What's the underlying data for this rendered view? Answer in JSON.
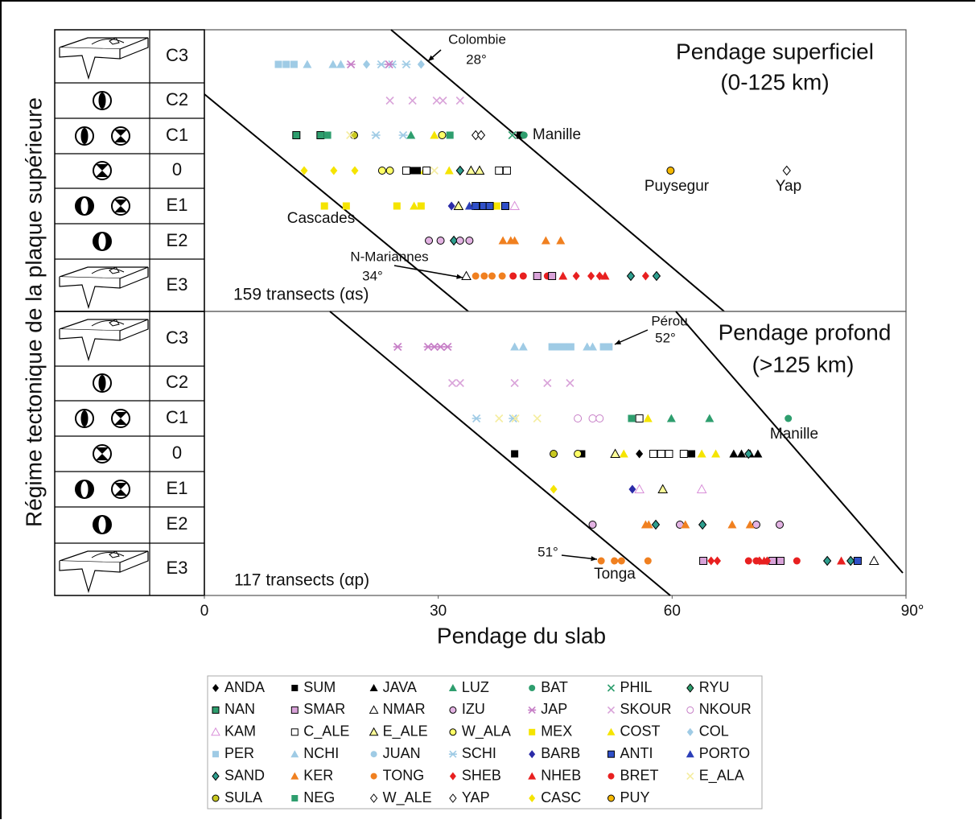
{
  "chart_data": [
    {
      "type": "scatter",
      "title": "Pendage superficiel",
      "subtitle": "(0-125 km)",
      "ylabel": "Régime tectonique de la plaque supérieure",
      "categories": [
        "C3",
        "C2",
        "C1",
        "0",
        "E1",
        "E2",
        "E3"
      ],
      "xlim": [
        0,
        90
      ],
      "annotations": [
        "Colombie",
        "28°",
        "Manille",
        "Puysegur",
        "Yap",
        "Cascades",
        "N-Mariannes",
        "34°",
        "159 transects (αs)"
      ],
      "series": [
        {
          "name": "PER",
          "x": [
            9.5,
            10.5,
            11.5
          ],
          "y": [
            "C3",
            "C3",
            "C3"
          ]
        },
        {
          "name": "NCHI",
          "x": [
            13.2,
            16.5,
            17.5
          ],
          "y": [
            "C3",
            "C3",
            "C3"
          ]
        },
        {
          "name": "COL",
          "x": [
            20.8,
            27.8
          ],
          "y": [
            "C3",
            "C3"
          ]
        },
        {
          "name": "SCHI",
          "x": [
            22.7,
            24.1,
            25.9,
            22,
            25.5
          ],
          "y": [
            "C3",
            "C3",
            "C3",
            "C1",
            "C1"
          ]
        },
        {
          "name": "JAP",
          "x": [
            18.8,
            23.7
          ],
          "y": [
            "C3",
            "C3"
          ]
        },
        {
          "name": "SKOUR",
          "x": [
            23.8,
            26.7,
            29.8,
            30.6,
            32.8
          ],
          "y": [
            "C2",
            "C2",
            "C2",
            "C2",
            "C2"
          ]
        },
        {
          "name": "NAN",
          "x": [
            11.8,
            14.9
          ],
          "y": [
            "C1",
            "C1"
          ]
        },
        {
          "name": "NEG",
          "x": [
            15.8,
            31.5
          ],
          "y": [
            "C1",
            "C1"
          ]
        },
        {
          "name": "SULA",
          "x": [
            19.2
          ],
          "y": [
            "C1"
          ]
        },
        {
          "name": "E_ALA",
          "x": [
            18.7,
            29.5
          ],
          "y": [
            "C1",
            "0"
          ]
        },
        {
          "name": "PHIL",
          "x": [
            39.5
          ],
          "y": [
            "C1"
          ]
        },
        {
          "name": "LUZ",
          "x": [
            26.5
          ],
          "y": [
            "C1"
          ]
        },
        {
          "name": "COST",
          "x": [
            29.5,
            28.2,
            31.4,
            26.9
          ],
          "y": [
            "C1",
            "0",
            "0",
            "E1"
          ]
        },
        {
          "name": "W_ALA",
          "x": [
            30.5,
            22.8,
            23.8
          ],
          "y": [
            "C1",
            "0",
            "0"
          ]
        },
        {
          "name": "W_ALE",
          "x": [
            34.8,
            35.5
          ],
          "y": [
            "C1",
            "C1"
          ]
        },
        {
          "name": "SUM",
          "x": [
            40.5,
            26.7,
            27.3
          ],
          "y": [
            "C1",
            "0",
            "0"
          ]
        },
        {
          "name": "BAT",
          "x": [
            41
          ],
          "y": [
            "C1"
          ]
        },
        {
          "name": "CASC",
          "x": [
            12.8,
            16.6,
            19.3
          ],
          "y": [
            "0",
            "0",
            "0"
          ]
        },
        {
          "name": "C_ALE",
          "x": [
            25.9,
            28.5,
            37.8,
            38.8
          ],
          "y": [
            "0",
            "0",
            "0",
            "0"
          ]
        },
        {
          "name": "SAND",
          "x": [
            32.8,
            32,
            54.7,
            58
          ],
          "y": [
            "0",
            "E2",
            "E3",
            "E3"
          ]
        },
        {
          "name": "E_ALE",
          "x": [
            34.2,
            35.3,
            32.6
          ],
          "y": [
            "0",
            "0",
            "E1"
          ]
        },
        {
          "name": "PUY",
          "x": [
            59.8
          ],
          "y": [
            "0"
          ]
        },
        {
          "name": "YAP",
          "x": [
            74.7
          ],
          "y": [
            "0"
          ]
        },
        {
          "name": "MEX",
          "x": [
            15.4,
            18.2,
            24.7,
            27.8,
            37.5
          ],
          "y": [
            "E1",
            "E1",
            "E1",
            "E1",
            "E1"
          ]
        },
        {
          "name": "BARB",
          "x": [
            31.7
          ],
          "y": [
            "E1"
          ]
        },
        {
          "name": "ANTI",
          "x": [
            34.8,
            35.8,
            36.6,
            38.6
          ],
          "y": [
            "E1",
            "E1",
            "E1",
            "E1"
          ]
        },
        {
          "name": "PORTO",
          "x": [
            34
          ],
          "y": [
            "E1"
          ]
        },
        {
          "name": "KAM",
          "x": [
            39.8
          ],
          "y": [
            "E1"
          ]
        },
        {
          "name": "IZU",
          "x": [
            28.8,
            30.3,
            32.8,
            34
          ],
          "y": [
            "E2",
            "E2",
            "E2",
            "E2"
          ]
        },
        {
          "name": "KER",
          "x": [
            38.3,
            39.3,
            39.8,
            43.8,
            45.7
          ],
          "y": [
            "E2",
            "E2",
            "E2",
            "E2",
            "E2"
          ]
        },
        {
          "name": "NMAR",
          "x": [
            33.6
          ],
          "y": [
            "E3"
          ]
        },
        {
          "name": "TONG",
          "x": [
            34.8,
            35.9,
            36.9,
            38.2
          ],
          "y": [
            "E3",
            "E3",
            "E3",
            "E3"
          ]
        },
        {
          "name": "BRET",
          "x": [
            39.6,
            40.9,
            44
          ],
          "y": [
            "E3",
            "E3",
            "E3"
          ]
        },
        {
          "name": "SMAR",
          "x": [
            42.7,
            44.6
          ],
          "y": [
            "E3",
            "E3"
          ]
        },
        {
          "name": "NHEB",
          "x": [
            46,
            51.4
          ],
          "y": [
            "E3",
            "E3"
          ]
        },
        {
          "name": "SHEB",
          "x": [
            47.7,
            49.6,
            50.7,
            56.6
          ],
          "y": [
            "E3",
            "E3",
            "E3",
            "E3"
          ]
        }
      ]
    },
    {
      "type": "scatter",
      "title": "Pendage profond",
      "subtitle": "(>125 km)",
      "xlabel": "Pendage du slab",
      "categories": [
        "C3",
        "C2",
        "C1",
        "0",
        "E1",
        "E2",
        "E3"
      ],
      "xlim": [
        0,
        90
      ],
      "xticks": [
        0,
        30,
        60,
        {
          "value": 90,
          "label": "90°"
        }
      ],
      "annotations": [
        "Pérou",
        "52°",
        "Manille",
        "51°",
        "Tonga",
        "117 transects (αp)"
      ],
      "series": [
        {
          "name": "JAP",
          "x": [
            24.8,
            28.7,
            29.5,
            30.3,
            31.2
          ],
          "y": [
            "C3",
            "C3",
            "C3",
            "C3",
            "C3"
          ]
        },
        {
          "name": "NCHI",
          "x": [
            39.8,
            40.9,
            49.1,
            49.8
          ],
          "y": [
            "C3",
            "C3",
            "C3",
            "C3"
          ]
        },
        {
          "name": "PER",
          "x": [
            44.6,
            45.4,
            46.2,
            47,
            51.2,
            51.9
          ],
          "y": [
            "C3",
            "C3",
            "C3",
            "C3",
            "C3",
            "C3"
          ]
        },
        {
          "name": "SKOUR",
          "x": [
            31.8,
            32.8,
            39.8,
            44,
            46.9
          ],
          "y": [
            "C2",
            "C2",
            "C2",
            "C2",
            "C2"
          ]
        },
        {
          "name": "SCHI",
          "x": [
            34.9,
            39.6
          ],
          "y": [
            "C1",
            "C1"
          ]
        },
        {
          "name": "E_ALA",
          "x": [
            37.8,
            39.9,
            42.7
          ],
          "y": [
            "C1",
            "C1",
            "C1"
          ]
        },
        {
          "name": "NKOUR",
          "x": [
            47.9,
            49.8,
            50.7
          ],
          "y": [
            "C1",
            "C1",
            "C1"
          ]
        },
        {
          "name": "NEG",
          "x": [
            54.8
          ],
          "y": [
            "C1"
          ]
        },
        {
          "name": "C_ALE",
          "x": [
            55.8,
            57.6,
            58.6,
            59.6,
            61.5
          ],
          "y": [
            "C1",
            "0",
            "0",
            "0",
            "0"
          ]
        },
        {
          "name": "COST",
          "x": [
            56.9,
            53.8,
            63.8,
            65.6
          ],
          "y": [
            "C1",
            "0",
            "0",
            "0"
          ]
        },
        {
          "name": "LUZ",
          "x": [
            59.9,
            64.8
          ],
          "y": [
            "C1",
            "C1"
          ]
        },
        {
          "name": "BAT",
          "x": [
            74.9
          ],
          "y": [
            "C1"
          ]
        },
        {
          "name": "SUM",
          "x": [
            39.8,
            48.4,
            62.5
          ],
          "y": [
            "0",
            "0",
            "0"
          ]
        },
        {
          "name": "SULA",
          "x": [
            44.8
          ],
          "y": [
            "0"
          ]
        },
        {
          "name": "W_ALA",
          "x": [
            47.9
          ],
          "y": [
            "0"
          ]
        },
        {
          "name": "E_ALE",
          "x": [
            52.7,
            58.8
          ],
          "y": [
            "0",
            "E1"
          ]
        },
        {
          "name": "ANDA",
          "x": [
            55.8
          ],
          "y": [
            "0"
          ]
        },
        {
          "name": "JAVA",
          "x": [
            67.9,
            68.9,
            70,
            71
          ],
          "y": [
            "0",
            "0",
            "0",
            "0"
          ]
        },
        {
          "name": "SAND",
          "x": [
            69.8,
            57.9,
            63.9,
            79.9,
            82.9
          ],
          "y": [
            "0",
            "E2",
            "E2",
            "E3",
            "E3"
          ]
        },
        {
          "name": "CASC",
          "x": [
            44.8
          ],
          "y": [
            "E1"
          ]
        },
        {
          "name": "BARB",
          "x": [
            54.9
          ],
          "y": [
            "E1"
          ]
        },
        {
          "name": "KAM",
          "x": [
            55.8,
            63.8
          ],
          "y": [
            "E1",
            "E1"
          ]
        },
        {
          "name": "IZU",
          "x": [
            49.8,
            61,
            70.8,
            73.8
          ],
          "y": [
            "E2",
            "E2",
            "E2",
            "E2"
          ]
        },
        {
          "name": "KER",
          "x": [
            56.6,
            57,
            61.7,
            67.7,
            70
          ],
          "y": [
            "E2",
            "E2",
            "E2",
            "E2",
            "E2"
          ]
        },
        {
          "name": "TONG",
          "x": [
            50.9,
            52.6,
            53.5,
            56.9
          ],
          "y": [
            "E3",
            "E3",
            "E3",
            "E3"
          ]
        },
        {
          "name": "SMAR",
          "x": [
            64,
            72.9,
            73.9
          ],
          "y": [
            "E3",
            "E3",
            "E3"
          ]
        },
        {
          "name": "SHEB",
          "x": [
            65,
            65.8,
            71.2,
            72.2
          ],
          "y": [
            "E3",
            "E3",
            "E3",
            "E3"
          ]
        },
        {
          "name": "BRET",
          "x": [
            69.8,
            70.8,
            76
          ],
          "y": [
            "E3",
            "E3",
            "E3"
          ]
        },
        {
          "name": "NHEB",
          "x": [
            71.8,
            81.7
          ],
          "y": [
            "E3",
            "E3"
          ]
        },
        {
          "name": "ANTI",
          "x": [
            83.8
          ],
          "y": [
            "E3"
          ]
        },
        {
          "name": "NMAR",
          "x": [
            85.9
          ],
          "y": [
            "E3"
          ]
        }
      ]
    }
  ],
  "legend": [
    {
      "name": "ANDA",
      "color": "#000000",
      "marker": "diamond",
      "edge": false
    },
    {
      "name": "SUM",
      "color": "#000000",
      "marker": "square",
      "edge": false
    },
    {
      "name": "JAVA",
      "color": "#000000",
      "marker": "triangle",
      "edge": false
    },
    {
      "name": "LUZ",
      "color": "#2e9e6e",
      "marker": "triangle",
      "edge": false
    },
    {
      "name": "BAT",
      "color": "#2e9e6e",
      "marker": "circle",
      "edge": false
    },
    {
      "name": "PHIL",
      "color": "#2e9e6e",
      "marker": "x",
      "edge": false
    },
    {
      "name": "RYU",
      "color": "#2e9e6e",
      "marker": "diamond",
      "edge": true
    },
    {
      "name": "NAN",
      "color": "#2e9e6e",
      "marker": "square",
      "edge": true
    },
    {
      "name": "SMAR",
      "color": "#d9a3d9",
      "marker": "square",
      "edge": true
    },
    {
      "name": "NMAR",
      "color": "#ffffff",
      "marker": "triangle",
      "edge": true
    },
    {
      "name": "IZU",
      "color": "#e3b3e3",
      "marker": "circle",
      "edge": true
    },
    {
      "name": "JAP",
      "color": "#c77fc7",
      "marker": "asterisk",
      "edge": false
    },
    {
      "name": "SKOUR",
      "color": "#d9a3d9",
      "marker": "x",
      "edge": false
    },
    {
      "name": "NKOUR",
      "color": "#ffffff",
      "marker": "circle",
      "edge": "#c77fc7"
    },
    {
      "name": "KAM",
      "color": "#ffffff",
      "marker": "triangle",
      "edge": "#d98fd9"
    },
    {
      "name": "C_ALE",
      "color": "#ffffff",
      "marker": "square",
      "edge": "#000000"
    },
    {
      "name": "E_ALE",
      "color": "#ffff99",
      "marker": "triangle",
      "edge": true
    },
    {
      "name": "W_ALA",
      "color": "#ffff66",
      "marker": "circle",
      "edge": true
    },
    {
      "name": "MEX",
      "color": "#f5e400",
      "marker": "square",
      "edge": false
    },
    {
      "name": "COST",
      "color": "#f5e400",
      "marker": "triangle",
      "edge": false
    },
    {
      "name": "COL",
      "color": "#9fcbe5",
      "marker": "diamond",
      "edge": false
    },
    {
      "name": "PER",
      "color": "#9fcbe5",
      "marker": "square",
      "edge": false
    },
    {
      "name": "NCHI",
      "color": "#9fcbe5",
      "marker": "triangle",
      "edge": false
    },
    {
      "name": "JUAN",
      "color": "#9fcbe5",
      "marker": "circle",
      "edge": false
    },
    {
      "name": "SCHI",
      "color": "#9fcbe5",
      "marker": "asterisk",
      "edge": false
    },
    {
      "name": "BARB",
      "color": "#2b2ba8",
      "marker": "diamond",
      "edge": false
    },
    {
      "name": "ANTI",
      "color": "#3050c8",
      "marker": "square",
      "edge": true
    },
    {
      "name": "PORTO",
      "color": "#2b3fb8",
      "marker": "triangle",
      "edge": false
    },
    {
      "name": "SAND",
      "color": "#2e9e8e",
      "marker": "diamond",
      "edge": true
    },
    {
      "name": "KER",
      "color": "#f08020",
      "marker": "triangle",
      "edge": false
    },
    {
      "name": "TONG",
      "color": "#f08020",
      "marker": "circle",
      "edge": false
    },
    {
      "name": "SHEB",
      "color": "#e82020",
      "marker": "diamond",
      "edge": false
    },
    {
      "name": "NHEB",
      "color": "#e82020",
      "marker": "triangle",
      "edge": false
    },
    {
      "name": "BRET",
      "color": "#e82020",
      "marker": "circle",
      "edge": false
    },
    {
      "name": "E_ALA",
      "color": "#f5eda0",
      "marker": "x",
      "edge": false
    },
    {
      "name": "SULA",
      "color": "#c8c820",
      "marker": "circle",
      "edge": true
    },
    {
      "name": "NEG",
      "color": "#2e9e6e",
      "marker": "square",
      "edge": false
    },
    {
      "name": "W_ALE",
      "color": "#ffffff",
      "marker": "diamond",
      "edge": true
    },
    {
      "name": "YAP",
      "color": "#ffffff",
      "marker": "diamond",
      "edge": true
    },
    {
      "name": "CASC",
      "color": "#f5e400",
      "marker": "diamond",
      "edge": false
    },
    {
      "name": "PUY",
      "color": "#f5b800",
      "marker": "circle",
      "edge": true
    }
  ]
}
